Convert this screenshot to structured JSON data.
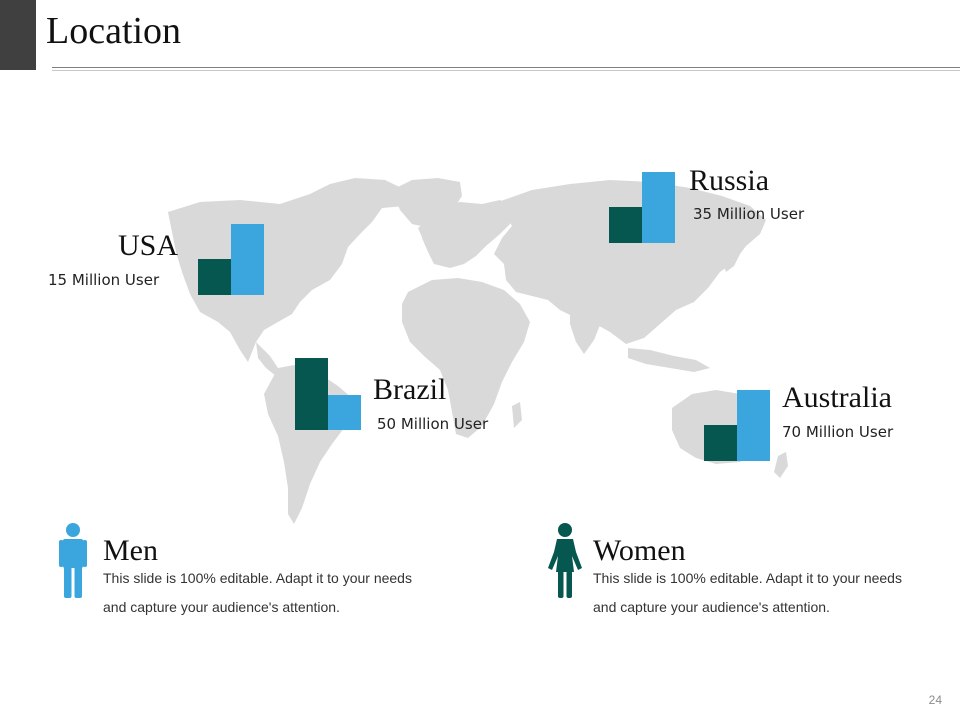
{
  "slide": {
    "title": "Location",
    "page_number": "24"
  },
  "colors": {
    "dark": "#06574f",
    "light": "#3ba6dd",
    "map": "#d9d9d9"
  },
  "locations": [
    {
      "country": "USA",
      "users": "15 Million User"
    },
    {
      "country": "Russia",
      "users": "35 Million User"
    },
    {
      "country": "Brazil",
      "users": "50 Million User"
    },
    {
      "country": "Australia",
      "users": "70 Million User"
    }
  ],
  "legend": {
    "men": {
      "heading": "Men",
      "icon": "man-icon",
      "text": "This slide is 100% editable. Adapt it to your needs and capture your audience's attention."
    },
    "women": {
      "heading": "Women",
      "icon": "woman-icon",
      "text": "This slide is 100% editable. Adapt it to your needs and capture your audience's attention."
    }
  }
}
